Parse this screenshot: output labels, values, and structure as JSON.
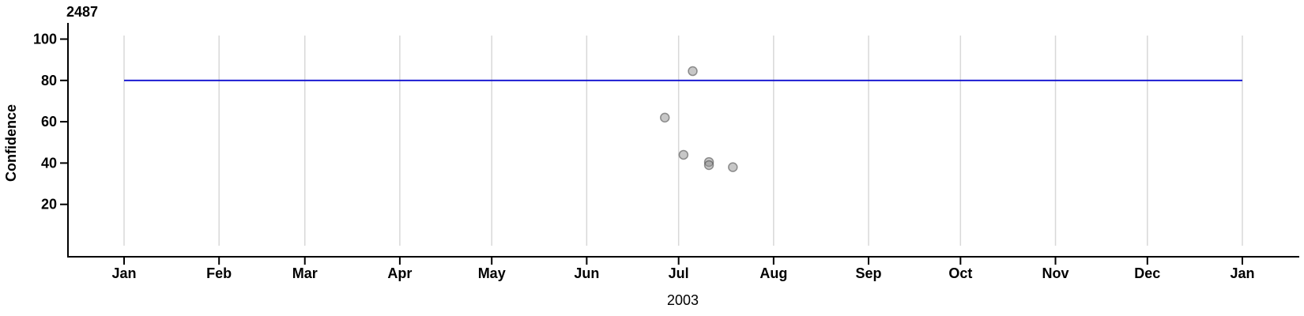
{
  "chart": {
    "title": "2487"
  },
  "chart_data": {
    "type": "scatter",
    "title": "2487",
    "xlabel": "2003",
    "ylabel": "Confidence",
    "x_tick_labels": [
      "Jan",
      "Feb",
      "Mar",
      "Apr",
      "May",
      "Jun",
      "Jul",
      "Aug",
      "Sep",
      "Oct",
      "Nov",
      "Dec",
      "Jan"
    ],
    "x_month_start_days": [
      0,
      31,
      59,
      90,
      120,
      151,
      181,
      212,
      243,
      273,
      304,
      334,
      365
    ],
    "x_range_days": [
      0,
      365
    ],
    "y_ticks": [
      20,
      40,
      60,
      80,
      100
    ],
    "y_range": [
      0,
      101.5
    ],
    "grid": "vertical-month-gridlines",
    "legend": "none",
    "reference_line": {
      "y": 80,
      "x_start_day": 0,
      "x_end_day": 365,
      "color": "#0f0fd0"
    },
    "points": [
      {
        "date_approx": "2003-06-26",
        "day_of_year": 176.5,
        "confidence": 62
      },
      {
        "date_approx": "2003-07-02",
        "day_of_year": 182.6,
        "confidence": 44
      },
      {
        "date_approx": "2003-07-05",
        "day_of_year": 185.6,
        "confidence": 84.5
      },
      {
        "date_approx": "2003-07-10",
        "day_of_year": 190.9,
        "confidence": 40.5
      },
      {
        "date_approx": "2003-07-10",
        "day_of_year": 190.9,
        "confidence": 39
      },
      {
        "date_approx": "2003-07-19",
        "day_of_year": 198.7,
        "confidence": 38
      }
    ],
    "point_style": {
      "radius": 5.5,
      "fill": "#8f8f8f",
      "fill_opacity": 0.5,
      "stroke": "#464646",
      "stroke_opacity": 0.55,
      "stroke_width": 1.5
    },
    "colors": {
      "axis": "#000000",
      "gridline": "#d8d8d8",
      "reference_line": "#0f0fd0",
      "background": "#ffffff",
      "text": "#000000"
    }
  }
}
